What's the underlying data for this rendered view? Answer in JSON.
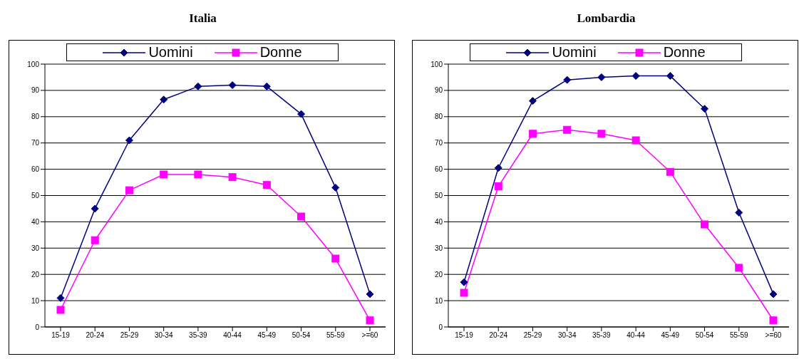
{
  "chart_data": [
    {
      "type": "line",
      "title": "Italia",
      "categories": [
        "15-19",
        "20-24",
        "25-29",
        "30-34",
        "35-39",
        "40-44",
        "45-49",
        "50-54",
        "55-59",
        ">=60"
      ],
      "series": [
        {
          "name": "Uomini",
          "color": "#000080",
          "marker": "diamond",
          "values": [
            11,
            45,
            71,
            86.5,
            91.5,
            92,
            91.5,
            81,
            53,
            12.5
          ]
        },
        {
          "name": "Donne",
          "color": "#ff00ff",
          "marker": "square",
          "values": [
            6.5,
            33,
            52,
            58,
            58,
            57,
            54,
            42,
            26,
            2.5
          ]
        }
      ],
      "ylim": [
        0,
        100
      ],
      "yticks": [
        0,
        10,
        20,
        30,
        40,
        50,
        60,
        70,
        80,
        90,
        100
      ],
      "grid": "y",
      "legend": "top"
    },
    {
      "type": "line",
      "title": "Lombardia",
      "categories": [
        "15-19",
        "20-24",
        "25-29",
        "30-34",
        "35-39",
        "40-44",
        "45-49",
        "50-54",
        "55-59",
        ">=60"
      ],
      "series": [
        {
          "name": "Uomini",
          "color": "#000080",
          "marker": "diamond",
          "values": [
            17,
            60.5,
            86,
            94,
            95,
            95.5,
            95.5,
            83,
            43.5,
            12.5
          ]
        },
        {
          "name": "Donne",
          "color": "#ff00ff",
          "marker": "square",
          "values": [
            13,
            53.5,
            73.5,
            75,
            73.5,
            71,
            59,
            39,
            22.5,
            2.5
          ]
        }
      ],
      "ylim": [
        0,
        100
      ],
      "yticks": [
        0,
        10,
        20,
        30,
        40,
        50,
        60,
        70,
        80,
        90,
        100
      ],
      "grid": "y",
      "legend": "top"
    }
  ]
}
